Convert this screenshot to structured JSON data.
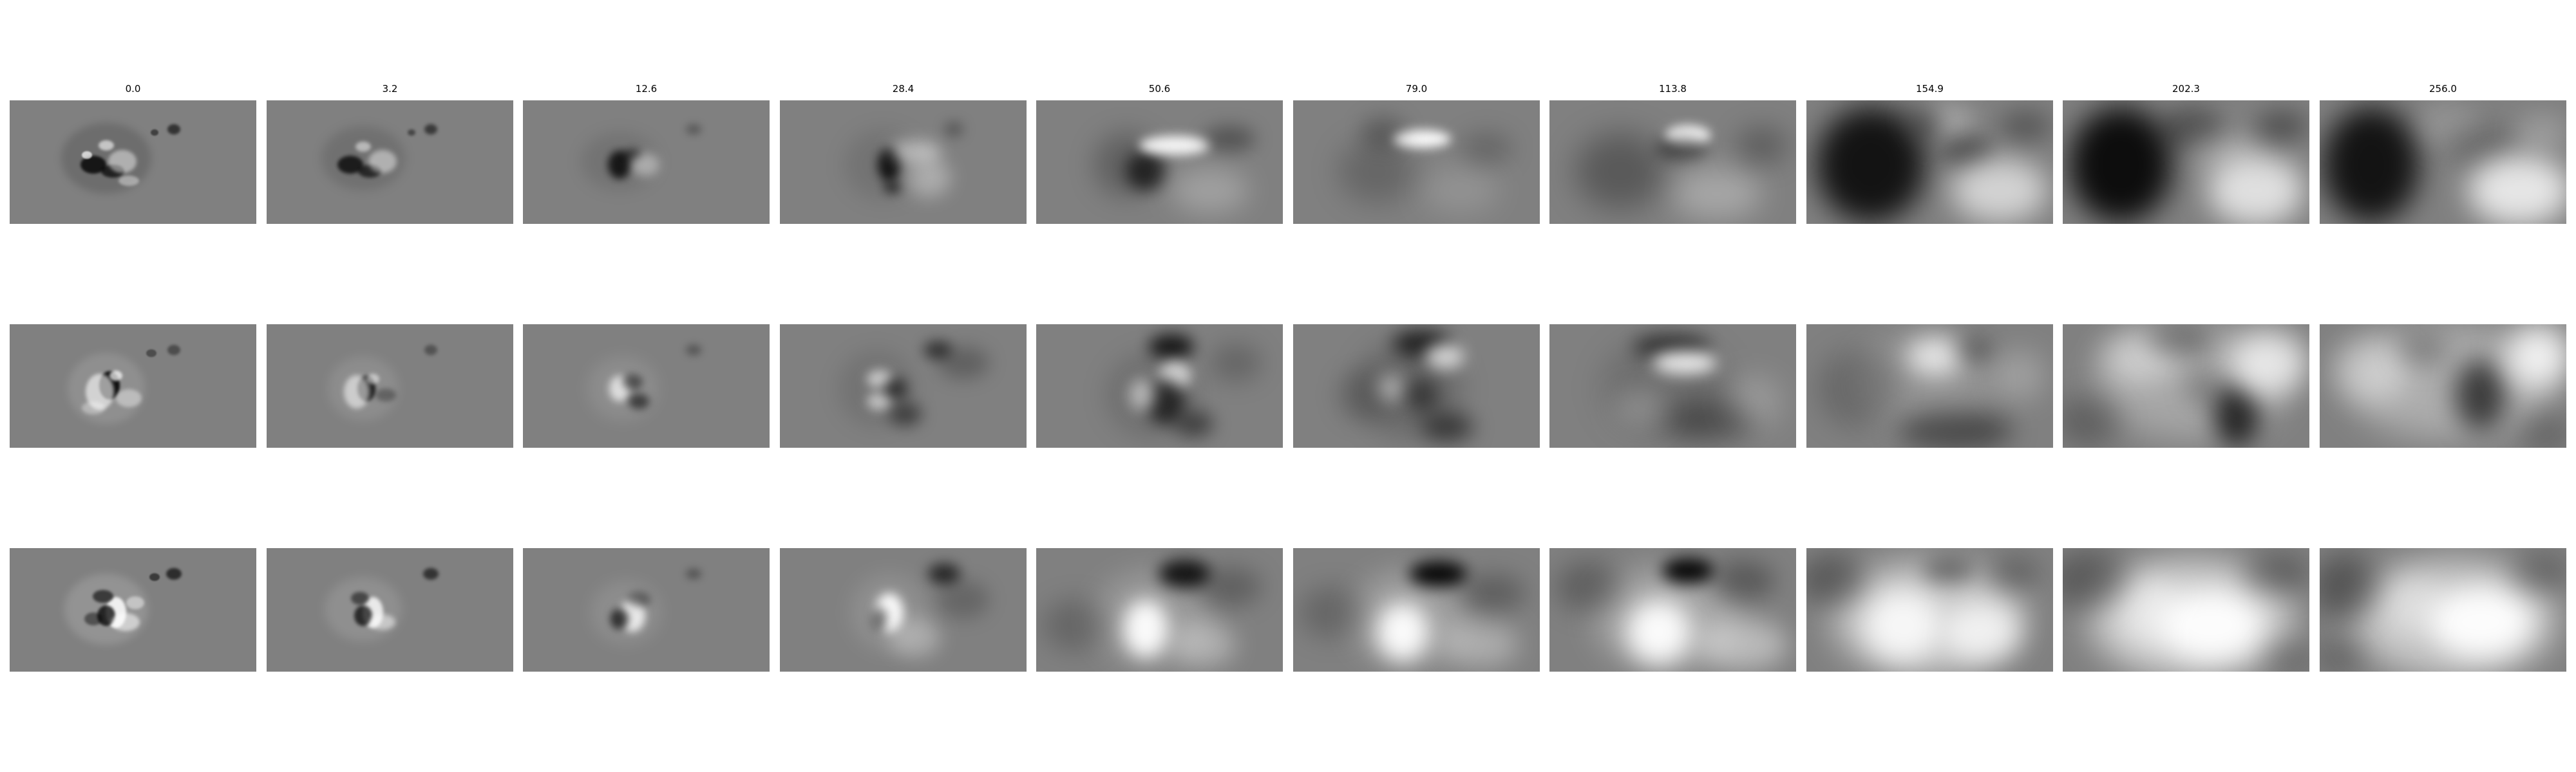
{
  "figure": {
    "column_labels": [
      "0.0",
      "3.2",
      "12.6",
      "28.4",
      "50.6",
      "79.0",
      "113.8",
      "154.9",
      "202.3",
      "256.0"
    ],
    "row_count": 3,
    "colormap": {
      "background": "#808080",
      "dark": "#000000",
      "light": "#ffffff"
    }
  }
}
